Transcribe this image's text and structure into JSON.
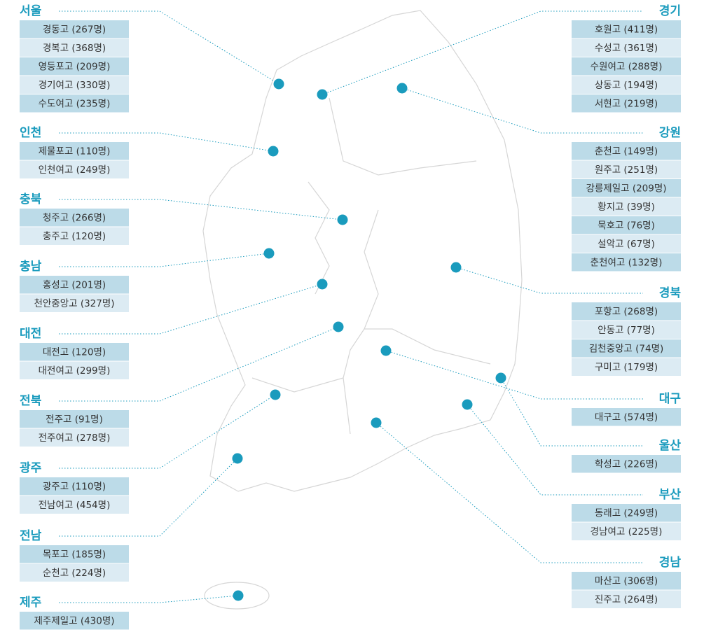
{
  "left": [
    {
      "name": "서울",
      "schools": [
        "경동고 (267명)",
        "경복고 (368명)",
        "영등포고 (209명)",
        "경기여고 (330명)",
        "수도여고 (235명)"
      ]
    },
    {
      "name": "인천",
      "schools": [
        "제물포고 (110명)",
        "인천여고 (249명)"
      ]
    },
    {
      "name": "충북",
      "schools": [
        "청주고 (266명)",
        "충주고 (120명)"
      ]
    },
    {
      "name": "충남",
      "schools": [
        "홍성고 (201명)",
        "천안중앙고 (327명)"
      ]
    },
    {
      "name": "대전",
      "schools": [
        "대전고 (120명)",
        "대전여고 (299명)"
      ]
    },
    {
      "name": "전북",
      "schools": [
        "전주고 (91명)",
        "전주여고 (278명)"
      ]
    },
    {
      "name": "광주",
      "schools": [
        "광주고 (110명)",
        "전남여고 (454명)"
      ]
    },
    {
      "name": "전남",
      "schools": [
        "목포고 (185명)",
        "순천고 (224명)"
      ]
    },
    {
      "name": "제주",
      "schools": [
        "제주제일고 (430명)"
      ]
    }
  ],
  "right": [
    {
      "name": "경기",
      "schools": [
        "호원고 (411명)",
        "수성고 (361명)",
        "수원여고 (288명)",
        "상동고 (194명)",
        "서현고 (219명)"
      ]
    },
    {
      "name": "강원",
      "schools": [
        "춘천고 (149명)",
        "원주고 (251명)",
        "강릉제일고 (209명)",
        "황지고 (39명)",
        "묵호고 (76명)",
        "설악고 (67명)",
        "춘천여고 (132명)"
      ]
    },
    {
      "name": "경북",
      "schools": [
        "포항고 (268명)",
        "안동고 (77명)",
        "김천중앙고 (74명)",
        "구미고 (179명)"
      ]
    },
    {
      "name": "대구",
      "schools": [
        "대구고 (574명)"
      ]
    },
    {
      "name": "울산",
      "schools": [
        "학성고 (226명)"
      ]
    },
    {
      "name": "부산",
      "schools": [
        "동래고 (249명)",
        "경남여고 (225명)"
      ]
    },
    {
      "name": "경남",
      "schools": [
        "마산고 (306명)",
        "진주고 (264명)"
      ]
    }
  ]
}
